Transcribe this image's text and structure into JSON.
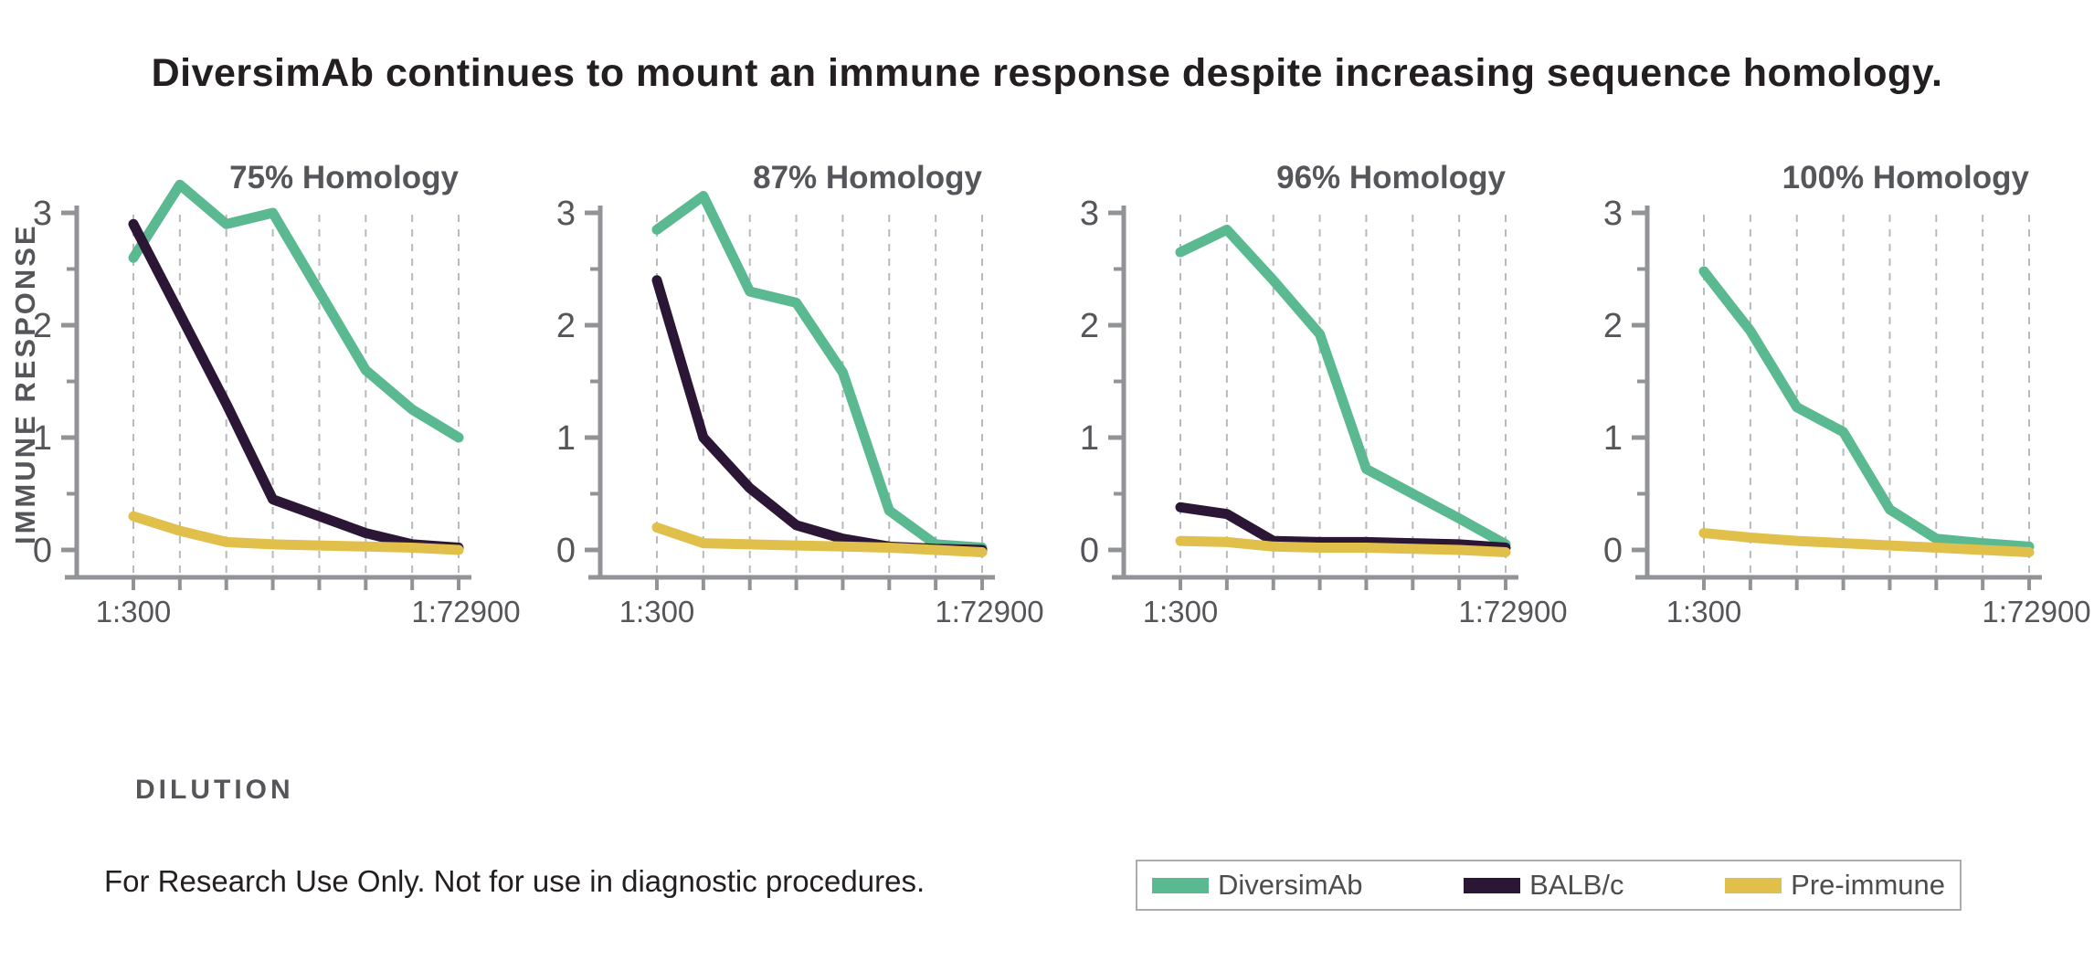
{
  "page": {
    "title": "DiversimAb continues to mount an immune response despite increasing sequence homology.",
    "footer_note": "For Research Use Only. Not for use in diagnostic procedures."
  },
  "axes": {
    "y_label": "IMMUNE RESPONSE",
    "x_label": "DILUTION"
  },
  "legend": {
    "items": [
      {
        "label": "DiversimAb",
        "color": "#5bb992"
      },
      {
        "label": "BALB/c",
        "color": "#2b1735"
      },
      {
        "label": "Pre-immune",
        "color": "#e0bf4a"
      }
    ]
  },
  "colors": {
    "diversimab": "#5bb992",
    "balbc": "#2b1735",
    "preimmune": "#e0bf4a",
    "axis": "#919396",
    "gridline": "#b9babc",
    "tick_text": "#54565a",
    "panel_title": "#54565a",
    "title_text": "#231f20"
  },
  "chart_data": [
    {
      "type": "line",
      "title": "75% Homology",
      "xlabel": "DILUTION",
      "ylabel": "IMMUNE RESPONSE",
      "ylim": [
        0,
        3
      ],
      "y_ticks": [
        0,
        1,
        2,
        3
      ],
      "x_points": 8,
      "x_tick_labels": [
        "1:300",
        "1:72900"
      ],
      "grid": "vertical-dashed",
      "series": [
        {
          "name": "DiversimAb",
          "values": [
            2.6,
            3.25,
            2.9,
            3.0,
            2.3,
            1.6,
            1.25,
            1.0
          ]
        },
        {
          "name": "BALB/c",
          "values": [
            2.9,
            2.1,
            1.3,
            0.45,
            0.3,
            0.15,
            0.05,
            0.02
          ]
        },
        {
          "name": "Pre-immune",
          "values": [
            0.3,
            0.17,
            0.07,
            0.05,
            0.04,
            0.03,
            0.02,
            0.0
          ]
        }
      ]
    },
    {
      "type": "line",
      "title": "87% Homology",
      "ylim": [
        0,
        3
      ],
      "y_ticks": [
        0,
        1,
        2,
        3
      ],
      "x_points": 8,
      "x_tick_labels": [
        "1:300",
        "1:72900"
      ],
      "grid": "vertical-dashed",
      "series": [
        {
          "name": "DiversimAb",
          "values": [
            2.85,
            3.15,
            2.3,
            2.2,
            1.58,
            0.35,
            0.05,
            0.02
          ]
        },
        {
          "name": "BALB/c",
          "values": [
            2.4,
            1.0,
            0.55,
            0.22,
            0.1,
            0.03,
            0.01,
            0.0
          ]
        },
        {
          "name": "Pre-immune",
          "values": [
            0.2,
            0.06,
            0.05,
            0.04,
            0.03,
            0.02,
            0.0,
            -0.02
          ]
        }
      ]
    },
    {
      "type": "line",
      "title": "96% Homology",
      "ylim": [
        0,
        3
      ],
      "y_ticks": [
        0,
        1,
        2,
        3
      ],
      "x_points": 8,
      "x_tick_labels": [
        "1:300",
        "1:72900"
      ],
      "grid": "vertical-dashed",
      "series": [
        {
          "name": "DiversimAb",
          "values": [
            2.65,
            2.85,
            2.4,
            1.92,
            0.72,
            0.5,
            0.28,
            0.05
          ]
        },
        {
          "name": "BALB/c",
          "values": [
            0.38,
            0.32,
            0.08,
            0.07,
            0.07,
            0.06,
            0.05,
            0.02
          ]
        },
        {
          "name": "Pre-immune",
          "values": [
            0.08,
            0.07,
            0.03,
            0.02,
            0.02,
            0.01,
            0.0,
            -0.02
          ]
        }
      ]
    },
    {
      "type": "line",
      "title": "100% Homology",
      "ylim": [
        0,
        3
      ],
      "y_ticks": [
        0,
        1,
        2,
        3
      ],
      "x_points": 8,
      "x_tick_labels": [
        "1:300",
        "1:72900"
      ],
      "grid": "vertical-dashed",
      "series": [
        {
          "name": "DiversimAb",
          "values": [
            2.48,
            1.95,
            1.27,
            1.05,
            0.36,
            0.1,
            0.06,
            0.03
          ]
        },
        {
          "name": "BALB/c",
          "values": null
        },
        {
          "name": "Pre-immune",
          "values": [
            0.15,
            0.11,
            0.08,
            0.06,
            0.04,
            0.02,
            0.0,
            -0.02
          ]
        }
      ]
    }
  ]
}
